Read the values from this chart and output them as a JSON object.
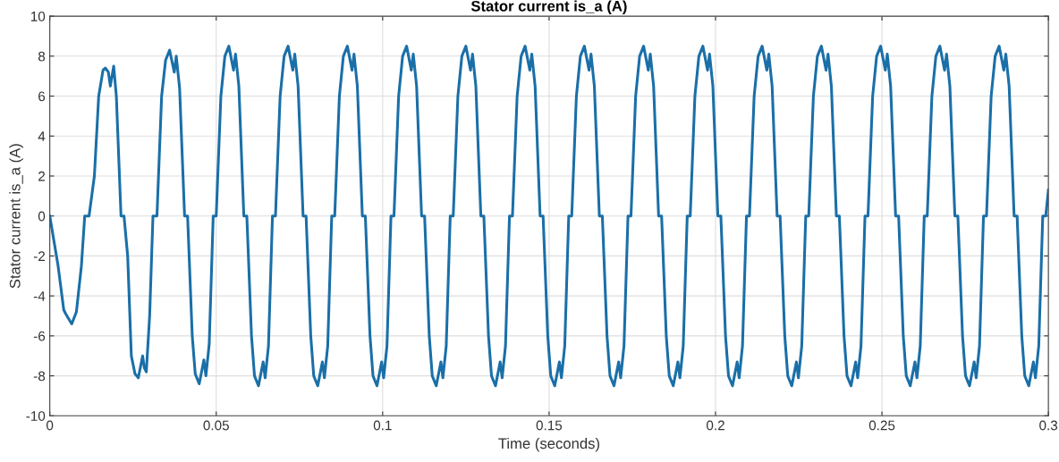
{
  "chart_data": {
    "type": "line",
    "title": "Stator current is_a (A)",
    "xlabel": "Time (seconds)",
    "ylabel": "Stator current is_a (A)",
    "xlim": [
      0,
      0.3
    ],
    "xticks": [
      0,
      0.05,
      0.1,
      0.15,
      0.2,
      0.25,
      0.3
    ],
    "ylim": [
      -10,
      10
    ],
    "yticks": [
      -10,
      -8,
      -6,
      -4,
      -2,
      0,
      2,
      4,
      6,
      8,
      10
    ],
    "grid": true,
    "marker": "none",
    "line_style": "solid",
    "series": [
      {
        "color": "#1a6fa8",
        "x": [
          0,
          0.0025,
          0.0042,
          0.0048,
          0.0066,
          0.008,
          0.0095,
          0.0105,
          0.0118,
          0.0134,
          0.0147,
          0.016,
          0.0167,
          0.0176,
          0.0182,
          0.0192,
          0.02,
          0.0214,
          0.0223,
          0.0234,
          0.0245,
          0.0256,
          0.0266,
          0.0279,
          0.0284,
          0.029,
          0.03,
          0.031,
          0.0322,
          0.0336,
          0.0348,
          0.036,
          0.0374,
          0.038,
          0.039,
          0.0405,
          0.0414,
          0.0428,
          0.0437,
          0.0449,
          0.0463,
          0.0469,
          0.0479,
          0.0491,
          0.05,
          0.0514,
          0.0526,
          0.0538,
          0.0552,
          0.0558,
          0.0568,
          0.0583,
          0.0592,
          0.0606,
          0.0615,
          0.0627,
          0.0641,
          0.0647,
          0.0657,
          0.0669,
          0.0678,
          0.0692,
          0.0704,
          0.0716,
          0.073,
          0.0736,
          0.0746,
          0.0761,
          0.077,
          0.0784,
          0.0793,
          0.0805,
          0.0819,
          0.0825,
          0.0835,
          0.0847,
          0.0856,
          0.087,
          0.0882,
          0.0894,
          0.0908,
          0.0914,
          0.0924,
          0.0939,
          0.0948,
          0.0962,
          0.0971,
          0.0983,
          0.0997,
          0.1003,
          0.1013,
          0.1025,
          0.1034,
          0.1048,
          0.106,
          0.1072,
          0.1086,
          0.1092,
          0.1102,
          0.1117,
          0.1126,
          0.114,
          0.1149,
          0.1161,
          0.1175,
          0.1181,
          0.1191,
          0.1203,
          0.1212,
          0.1226,
          0.1238,
          0.125,
          0.1264,
          0.127,
          0.128,
          0.1295,
          0.1304,
          0.1318,
          0.1327,
          0.1339,
          0.1353,
          0.1359,
          0.1369,
          0.1381,
          0.139,
          0.1404,
          0.1416,
          0.1428,
          0.1442,
          0.1448,
          0.1458,
          0.1473,
          0.1482,
          0.1496,
          0.1505,
          0.1517,
          0.1531,
          0.1537,
          0.1547,
          0.1559,
          0.1568,
          0.1582,
          0.1594,
          0.1606,
          0.162,
          0.1626,
          0.1636,
          0.1651,
          0.166,
          0.1674,
          0.1683,
          0.1695,
          0.1709,
          0.1715,
          0.1725,
          0.1737,
          0.1746,
          0.176,
          0.1772,
          0.1784,
          0.1798,
          0.1804,
          0.1814,
          0.1829,
          0.1838,
          0.1852,
          0.1861,
          0.1873,
          0.1887,
          0.1893,
          0.1903,
          0.1915,
          0.1924,
          0.1938,
          0.195,
          0.1962,
          0.1976,
          0.1982,
          0.1992,
          0.2007,
          0.2016,
          0.203,
          0.2039,
          0.2051,
          0.2065,
          0.2071,
          0.2081,
          0.2093,
          0.2102,
          0.2116,
          0.2128,
          0.214,
          0.2154,
          0.216,
          0.217,
          0.2185,
          0.2194,
          0.2208,
          0.2217,
          0.2229,
          0.2243,
          0.2249,
          0.2259,
          0.2271,
          0.228,
          0.2294,
          0.2306,
          0.2318,
          0.2332,
          0.2338,
          0.2348,
          0.2363,
          0.2372,
          0.2386,
          0.2395,
          0.2407,
          0.2421,
          0.2427,
          0.2437,
          0.2449,
          0.2458,
          0.2472,
          0.2484,
          0.2496,
          0.251,
          0.2516,
          0.2526,
          0.2541,
          0.255,
          0.2564,
          0.2573,
          0.2585,
          0.2599,
          0.2605,
          0.2615,
          0.2627,
          0.2636,
          0.265,
          0.2662,
          0.2674,
          0.2688,
          0.2694,
          0.2704,
          0.2719,
          0.2728,
          0.2742,
          0.2751,
          0.2763,
          0.2777,
          0.2783,
          0.2793,
          0.2805,
          0.2814,
          0.2828,
          0.284,
          0.2852,
          0.2866,
          0.2872,
          0.2882,
          0.2897,
          0.2906,
          0.292,
          0.2929,
          0.2941,
          0.2955,
          0.2961,
          0.2971,
          0.2983,
          0.2992,
          0.3
        ],
        "values": [
          0,
          -2.5,
          -4.7,
          -4.9,
          -5.4,
          -4.8,
          -2.5,
          0,
          0,
          2,
          6,
          7.3,
          7.4,
          7.2,
          6.5,
          7.5,
          6.0,
          0,
          0,
          -2,
          -7,
          -7.9,
          -8.1,
          -7.0,
          -7.6,
          -7.8,
          -5,
          0,
          0,
          6,
          7.8,
          8.3,
          7.2,
          8.0,
          6.4,
          0,
          0,
          -6,
          -7.9,
          -8.4,
          -7.2,
          -8.0,
          -6.4,
          0,
          0,
          6,
          8.0,
          8.5,
          7.3,
          8.1,
          6.5,
          0,
          0,
          -6,
          -8.0,
          -8.5,
          -7.3,
          -8.1,
          -6.5,
          0,
          0,
          6,
          8.0,
          8.5,
          7.3,
          8.1,
          6.5,
          0,
          0,
          -6,
          -8.0,
          -8.5,
          -7.3,
          -8.1,
          -6.5,
          0,
          0,
          6,
          8.0,
          8.5,
          7.3,
          8.1,
          6.5,
          0,
          0,
          -6,
          -8.0,
          -8.5,
          -7.3,
          -8.1,
          -6.5,
          0,
          0,
          6,
          8.0,
          8.5,
          7.3,
          8.1,
          6.5,
          0,
          0,
          -6,
          -8.0,
          -8.5,
          -7.3,
          -8.1,
          -6.5,
          0,
          0,
          6,
          8.0,
          8.5,
          7.3,
          8.1,
          6.5,
          0,
          0,
          -6,
          -8.0,
          -8.5,
          -7.3,
          -8.1,
          -6.5,
          0,
          0,
          6,
          8.0,
          8.5,
          7.3,
          8.1,
          6.5,
          0,
          0,
          -6,
          -8.0,
          -8.5,
          -7.3,
          -8.1,
          -6.5,
          0,
          0,
          6,
          8.0,
          8.5,
          7.3,
          8.1,
          6.5,
          0,
          0,
          -6,
          -8.0,
          -8.5,
          -7.3,
          -8.1,
          -6.5,
          0,
          0,
          6,
          8.0,
          8.5,
          7.3,
          8.1,
          6.5,
          0,
          0,
          -6,
          -8.0,
          -8.5,
          -7.3,
          -8.1,
          -6.5,
          0,
          0,
          6,
          8.0,
          8.5,
          7.3,
          8.1,
          6.5,
          0,
          0,
          -6,
          -8.0,
          -8.5,
          -7.3,
          -8.1,
          -6.5,
          0,
          0,
          6,
          8.0,
          8.5,
          7.3,
          8.1,
          6.5,
          0,
          0,
          -6,
          -8.0,
          -8.5,
          -7.3,
          -8.1,
          -6.5,
          0,
          0,
          6,
          8.0,
          8.5,
          7.3,
          8.1,
          6.5,
          0,
          0,
          -6,
          -8.0,
          -8.5,
          -7.3,
          -8.1,
          -6.5,
          0,
          0,
          6,
          8.0,
          8.5,
          7.3,
          8.1,
          6.5,
          0,
          0,
          -6,
          -8.0,
          -8.5,
          -7.3,
          -8.1,
          -6.5,
          0,
          0,
          6,
          8.0,
          8.5,
          7.3,
          8.1,
          6.5,
          0,
          0,
          -6,
          -8.0,
          -8.5,
          -7.3,
          -8.1,
          -6.5,
          0,
          0,
          6,
          8.0,
          8.5,
          7.3,
          8.1,
          6.5,
          0,
          0,
          -6,
          -8.0,
          -8.5,
          -7.3,
          -8.1,
          -6.5,
          0,
          0,
          1.3
        ]
      }
    ]
  }
}
